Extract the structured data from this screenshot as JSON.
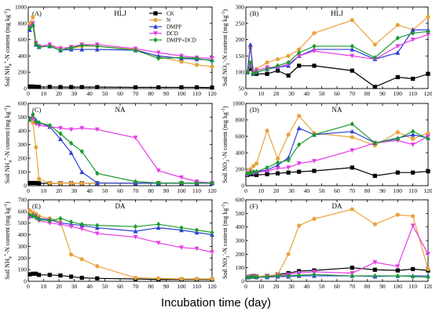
{
  "figure": {
    "xlabel": "Incubation time (day)",
    "series_styles": [
      {
        "name": "CK",
        "color": "#000000",
        "marker": "square"
      },
      {
        "name": "N",
        "color": "#e8a33a",
        "marker": "circle"
      },
      {
        "name": "DMPP",
        "color": "#2b3fd6",
        "marker": "triangle"
      },
      {
        "name": "DCD",
        "color": "#e63de6",
        "marker": "triangle-down"
      },
      {
        "name": "DMPP+DCD",
        "color": "#1a9a2f",
        "marker": "diamond"
      }
    ]
  },
  "chart_data": [
    {
      "type": "line",
      "panel": "(A)",
      "site": "HLJ",
      "ylabel": "Soil NH4+-N content (mg kg-1)",
      "ylim": [
        0,
        1000
      ],
      "yticks": [
        0,
        200,
        400,
        600,
        800,
        1000
      ],
      "xlim": [
        0,
        120
      ],
      "xticks": [
        0,
        10,
        20,
        30,
        40,
        50,
        60,
        70,
        80,
        90,
        100,
        110,
        120
      ],
      "legend": "top-right",
      "x": [
        1,
        3,
        5,
        7,
        14,
        21,
        28,
        35,
        45,
        70,
        85,
        100,
        110,
        120
      ],
      "series": [
        {
          "name": "CK",
          "values": [
            25,
            25,
            20,
            20,
            20,
            18,
            18,
            18,
            18,
            15,
            15,
            15,
            15,
            12
          ]
        },
        {
          "name": "N",
          "values": [
            800,
            880,
            560,
            520,
            520,
            500,
            490,
            520,
            520,
            480,
            390,
            330,
            290,
            270
          ]
        },
        {
          "name": "DMPP",
          "values": [
            720,
            780,
            540,
            510,
            520,
            470,
            480,
            480,
            480,
            470,
            400,
            370,
            360,
            350
          ]
        },
        {
          "name": "DCD",
          "values": [
            760,
            800,
            560,
            520,
            540,
            490,
            510,
            540,
            540,
            490,
            440,
            400,
            380,
            370
          ]
        },
        {
          "name": "DMPP+DCD",
          "values": [
            740,
            780,
            550,
            510,
            520,
            470,
            500,
            530,
            520,
            470,
            370,
            380,
            370,
            340
          ]
        }
      ]
    },
    {
      "type": "line",
      "panel": "(B)",
      "site": "HLJ",
      "ylabel": "Soil NO3--N content (mg kg-1)",
      "ylim": [
        50,
        300
      ],
      "yticks": [
        50,
        100,
        150,
        200,
        250,
        300
      ],
      "xlim": [
        0,
        120
      ],
      "xticks": [
        0,
        10,
        20,
        30,
        40,
        50,
        60,
        70,
        80,
        90,
        100,
        110,
        120
      ],
      "x": [
        1,
        3,
        5,
        7,
        14,
        21,
        28,
        35,
        45,
        70,
        85,
        100,
        110,
        120
      ],
      "series": [
        {
          "name": "CK",
          "values": [
            100,
            110,
            95,
            95,
            95,
            105,
            90,
            120,
            120,
            105,
            55,
            85,
            80,
            95
          ]
        },
        {
          "name": "N",
          "values": [
            100,
            175,
            100,
            110,
            130,
            140,
            150,
            170,
            220,
            260,
            185,
            245,
            230,
            270
          ]
        },
        {
          "name": "DMPP",
          "values": [
            100,
            185,
            95,
            100,
            110,
            115,
            120,
            150,
            170,
            170,
            140,
            160,
            230,
            230
          ]
        },
        {
          "name": "DCD",
          "values": [
            100,
            120,
            100,
            105,
            115,
            115,
            125,
            150,
            165,
            150,
            140,
            180,
            200,
            215
          ]
        },
        {
          "name": "DMPP+DCD",
          "values": [
            100,
            130,
            95,
            100,
            110,
            120,
            130,
            160,
            180,
            180,
            145,
            205,
            220,
            225
          ]
        }
      ]
    },
    {
      "type": "line",
      "panel": "(C)",
      "site": "NA",
      "ylabel": "Soil NH4+-N content (mg kg-1)",
      "ylim": [
        0,
        600
      ],
      "yticks": [
        0,
        100,
        200,
        300,
        400,
        500,
        600
      ],
      "xlim": [
        0,
        120
      ],
      "xticks": [
        0,
        10,
        20,
        30,
        40,
        50,
        60,
        70,
        80,
        90,
        100,
        110,
        120
      ],
      "x": [
        1,
        3,
        5,
        7,
        14,
        21,
        28,
        35,
        45,
        70,
        85,
        100,
        110,
        120
      ],
      "series": [
        {
          "name": "CK",
          "values": [
            20,
            20,
            20,
            18,
            18,
            18,
            18,
            18,
            18,
            18,
            18,
            18,
            18,
            18
          ]
        },
        {
          "name": "N",
          "values": [
            480,
            460,
            280,
            50,
            20,
            18,
            18,
            18,
            18,
            18,
            18,
            18,
            18,
            18
          ]
        },
        {
          "name": "DMPP",
          "values": [
            490,
            500,
            480,
            460,
            430,
            340,
            240,
            100,
            20,
            18,
            18,
            18,
            18,
            18
          ]
        },
        {
          "name": "DCD",
          "values": [
            480,
            490,
            450,
            440,
            430,
            420,
            410,
            420,
            410,
            350,
            110,
            60,
            30,
            20
          ]
        },
        {
          "name": "DMPP+DCD",
          "values": [
            480,
            520,
            470,
            460,
            440,
            380,
            310,
            250,
            90,
            30,
            20,
            20,
            20,
            20
          ]
        }
      ]
    },
    {
      "type": "line",
      "panel": "(D)",
      "site": "NA",
      "ylabel": "Soil NO3--N content (mg kg-1)",
      "ylim": [
        0,
        1000
      ],
      "yticks": [
        0,
        200,
        400,
        600,
        800,
        1000
      ],
      "xlim": [
        0,
        120
      ],
      "xticks": [
        0,
        10,
        20,
        30,
        40,
        50,
        60,
        70,
        80,
        90,
        100,
        110,
        120
      ],
      "x": [
        1,
        3,
        5,
        7,
        14,
        21,
        28,
        35,
        45,
        70,
        85,
        100,
        110,
        120
      ],
      "series": [
        {
          "name": "CK",
          "values": [
            130,
            140,
            140,
            130,
            140,
            150,
            160,
            170,
            180,
            220,
            120,
            160,
            160,
            175
          ]
        },
        {
          "name": "N",
          "values": [
            160,
            200,
            240,
            270,
            670,
            330,
            620,
            850,
            640,
            590,
            490,
            650,
            570,
            640
          ]
        },
        {
          "name": "DMPP",
          "values": [
            140,
            170,
            160,
            170,
            190,
            250,
            340,
            700,
            620,
            660,
            520,
            580,
            620,
            580
          ]
        },
        {
          "name": "DCD",
          "values": [
            130,
            150,
            150,
            160,
            180,
            210,
            220,
            270,
            300,
            430,
            520,
            550,
            500,
            600
          ]
        },
        {
          "name": "DMPP+DCD",
          "values": [
            150,
            150,
            170,
            170,
            220,
            280,
            310,
            500,
            620,
            750,
            520,
            570,
            660,
            570
          ]
        }
      ]
    },
    {
      "type": "line",
      "panel": "(E)",
      "site": "DA",
      "ylabel": "Soil NH4+-N content (mg kg-1)",
      "ylim": [
        0,
        700
      ],
      "yticks": [
        0,
        100,
        200,
        300,
        400,
        500,
        600,
        700
      ],
      "xlim": [
        0,
        120
      ],
      "xticks": [
        0,
        10,
        20,
        30,
        40,
        50,
        60,
        70,
        80,
        90,
        100,
        110,
        120
      ],
      "x": [
        1,
        3,
        5,
        7,
        14,
        21,
        28,
        35,
        45,
        70,
        85,
        100,
        110,
        120
      ],
      "series": [
        {
          "name": "CK",
          "values": [
            60,
            65,
            65,
            55,
            55,
            50,
            40,
            30,
            25,
            20,
            15,
            15,
            15,
            15
          ]
        },
        {
          "name": "N",
          "values": [
            610,
            590,
            580,
            560,
            540,
            510,
            230,
            190,
            130,
            30,
            25,
            20,
            20,
            20
          ]
        },
        {
          "name": "DMPP",
          "values": [
            560,
            570,
            560,
            540,
            530,
            500,
            490,
            480,
            460,
            430,
            460,
            440,
            420,
            400
          ]
        },
        {
          "name": "DCD",
          "values": [
            550,
            560,
            540,
            520,
            500,
            490,
            470,
            450,
            410,
            380,
            330,
            290,
            280,
            250
          ]
        },
        {
          "name": "DMPP+DCD",
          "values": [
            570,
            560,
            550,
            530,
            520,
            540,
            510,
            490,
            480,
            470,
            490,
            460,
            440,
            420
          ]
        }
      ]
    },
    {
      "type": "line",
      "panel": "(F)",
      "site": "DA",
      "ylabel": "Soil NO3--N content (mg kg-1)",
      "ylim": [
        0,
        600
      ],
      "yticks": [
        0,
        100,
        200,
        300,
        400,
        500,
        600
      ],
      "xlim": [
        0,
        120
      ],
      "xticks": [
        0,
        10,
        20,
        30,
        40,
        50,
        60,
        70,
        80,
        90,
        100,
        110,
        120
      ],
      "x": [
        1,
        3,
        5,
        7,
        14,
        21,
        28,
        35,
        45,
        70,
        85,
        100,
        110,
        120
      ],
      "series": [
        {
          "name": "CK",
          "values": [
            30,
            35,
            40,
            35,
            40,
            50,
            60,
            75,
            80,
            100,
            85,
            80,
            90,
            80
          ]
        },
        {
          "name": "N",
          "values": [
            35,
            40,
            40,
            35,
            40,
            50,
            200,
            410,
            460,
            530,
            420,
            490,
            480,
            90
          ]
        },
        {
          "name": "DMPP",
          "values": [
            30,
            35,
            35,
            30,
            30,
            35,
            35,
            40,
            40,
            40,
            35,
            40,
            40,
            40
          ]
        },
        {
          "name": "DCD",
          "values": [
            30,
            35,
            35,
            30,
            35,
            40,
            50,
            60,
            70,
            60,
            140,
            110,
            410,
            200
          ]
        },
        {
          "name": "DMPP+DCD",
          "values": [
            30,
            30,
            35,
            30,
            35,
            40,
            40,
            45,
            50,
            40,
            40,
            40,
            35,
            30
          ]
        }
      ]
    }
  ]
}
